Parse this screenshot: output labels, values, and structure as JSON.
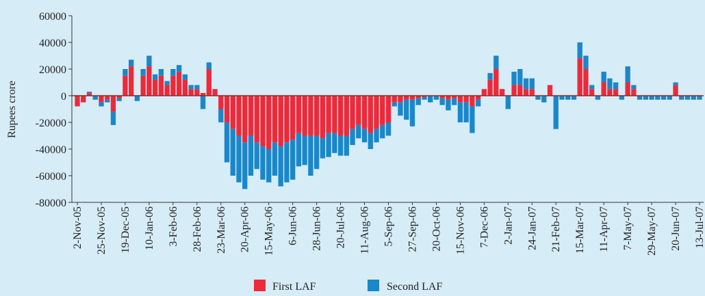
{
  "chart_data": {
    "type": "stacked_bar",
    "y_label": "Rupees crore",
    "ylim": [
      -80000,
      60000
    ],
    "yticks": [
      -80000,
      -60000,
      -40000,
      -20000,
      0,
      20000,
      40000,
      60000
    ],
    "categories": [
      "2-Nov-05",
      null,
      null,
      null,
      "25-Nov-05",
      null,
      null,
      null,
      "19-Dec-05",
      null,
      null,
      null,
      "10-Jan-06",
      null,
      null,
      null,
      "3-Feb-06",
      null,
      null,
      null,
      "28-Feb-06",
      null,
      null,
      null,
      "23-Mar-06",
      null,
      null,
      null,
      "20-Apr-06",
      null,
      null,
      null,
      "15-May-06",
      null,
      null,
      null,
      "6-Jun-06",
      null,
      null,
      null,
      "28-Jun-06",
      null,
      null,
      null,
      "20-Jul-06",
      null,
      null,
      null,
      "11-Aug-06",
      null,
      null,
      null,
      "5-Sep-06",
      null,
      null,
      null,
      "27-Sep-06",
      null,
      null,
      null,
      "20-Oct-06",
      null,
      null,
      null,
      "15-Nov-06",
      null,
      null,
      null,
      "7-Dec-06",
      null,
      null,
      null,
      "2-Jan-07",
      null,
      null,
      null,
      "24-Jan-07",
      null,
      null,
      null,
      "21-Feb-07",
      null,
      null,
      null,
      "15-Mar-07",
      null,
      null,
      null,
      "11-Apr-07",
      null,
      null,
      null,
      "7-May-07",
      null,
      null,
      null,
      "29-May-07",
      null,
      null,
      null,
      "20-Jun-07",
      null,
      null,
      null,
      "13-Jul-07"
    ],
    "series": [
      {
        "name": "First LAF",
        "color": "#ec2a3a",
        "values": [
          -8000,
          -5000,
          2000,
          0,
          -5000,
          -3000,
          -12000,
          -2000,
          15000,
          22000,
          0,
          15000,
          22000,
          12000,
          15000,
          8000,
          15000,
          18000,
          12000,
          5000,
          5000,
          2000,
          20000,
          5000,
          -10000,
          -20000,
          -25000,
          -30000,
          -35000,
          -30000,
          -35000,
          -38000,
          -40000,
          -35000,
          -38000,
          -35000,
          -33000,
          -28000,
          -30000,
          -30000,
          -30000,
          -32000,
          -28000,
          -28000,
          -30000,
          -30000,
          -25000,
          -22000,
          -25000,
          -28000,
          -25000,
          -22000,
          -20000,
          -5000,
          -5000,
          -3000,
          -3000,
          -2000,
          -1000,
          0,
          0,
          -2000,
          -3000,
          -2000,
          -5000,
          -5000,
          -8000,
          -3000,
          5000,
          12000,
          20000,
          5000,
          0,
          8000,
          8000,
          5000,
          5000,
          0,
          0,
          8000,
          0,
          0,
          0,
          0,
          28000,
          20000,
          5000,
          0,
          10000,
          5000,
          5000,
          0,
          10000,
          5000,
          0,
          0,
          0,
          0,
          0,
          0,
          8000,
          0,
          0,
          0,
          0
        ]
      },
      {
        "name": "Second LAF",
        "color": "#1b87c9",
        "values": [
          0,
          0,
          1000,
          -3000,
          -3000,
          -2000,
          -10000,
          -2000,
          5000,
          5000,
          -4000,
          5000,
          8000,
          4000,
          5000,
          3000,
          5000,
          5000,
          4000,
          3000,
          3000,
          -10000,
          5000,
          0,
          -10000,
          -30000,
          -35000,
          -35000,
          -35000,
          -30000,
          -20000,
          -25000,
          -25000,
          -25000,
          -30000,
          -30000,
          -30000,
          -25000,
          -22000,
          -30000,
          -25000,
          -15000,
          -18000,
          -15000,
          -15000,
          -15000,
          -12000,
          -10000,
          -10000,
          -12000,
          -10000,
          -10000,
          -10000,
          -3000,
          -10000,
          -15000,
          -20000,
          -5000,
          -2000,
          -5000,
          -3000,
          -5000,
          -8000,
          -5000,
          -15000,
          -15000,
          -20000,
          -5000,
          0,
          5000,
          10000,
          0,
          -10000,
          10000,
          12000,
          8000,
          8000,
          -3000,
          -5000,
          0,
          -25000,
          -3000,
          -3000,
          -3000,
          12000,
          10000,
          3000,
          -3000,
          8000,
          8000,
          5000,
          -3000,
          12000,
          3000,
          -3000,
          -3000,
          -3000,
          -3000,
          -3000,
          -3000,
          2000,
          -3000,
          -3000,
          -3000,
          -3000
        ]
      }
    ]
  }
}
